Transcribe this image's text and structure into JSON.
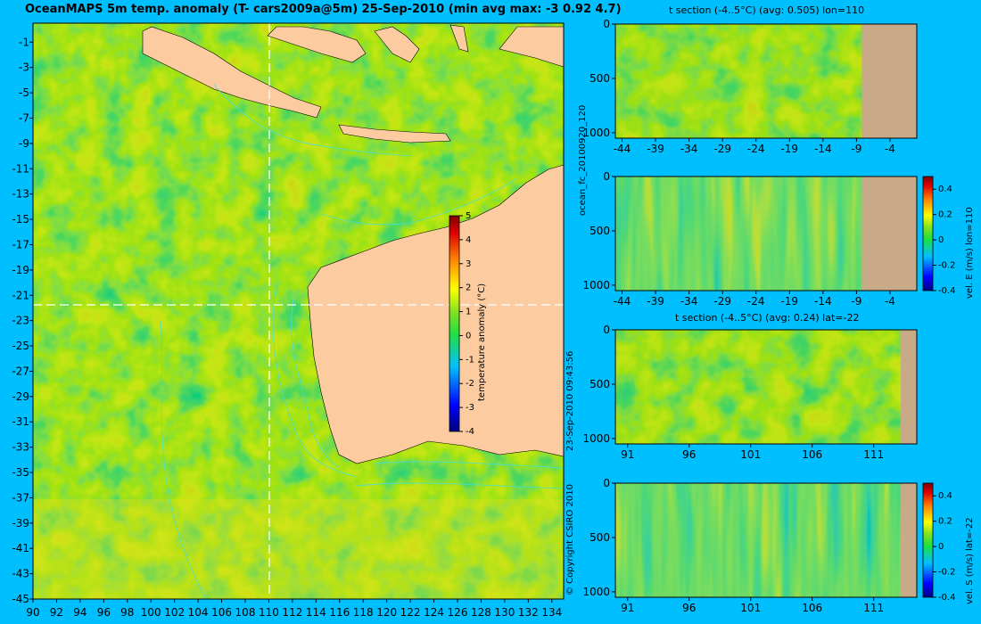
{
  "title": "OceanMAPS 5m temp. anomaly (T- cars2009a@5m) 25-Sep-2010 (min avg max: -3 0.92 4.7)",
  "side_labels": {
    "run_id": "ocean_fc_20100920_120",
    "timestamp": "23-Sep-2010 09:43:56",
    "copyright": "© Copyright CSIRO 2010"
  },
  "colors": {
    "background": "#00bfff",
    "land": "#fccca0",
    "section_land": "#c8aa88",
    "contour": "#40e0e0",
    "crosshair": "#ffffff"
  },
  "chart_data": [
    {
      "id": "map",
      "type": "heatmap",
      "title": "OceanMAPS 5m temp. anomaly (T- cars2009a@5m) 25-Sep-2010 (min avg max: -3 0.92 4.7)",
      "x_ticks": [
        "90",
        "92",
        "94",
        "96",
        "98",
        "100",
        "102",
        "104",
        "106",
        "108",
        "110",
        "112",
        "114",
        "116",
        "118",
        "120",
        "122",
        "124",
        "126",
        "128",
        "130",
        "132",
        "134"
      ],
      "y_ticks": [
        "-1",
        "-3",
        "-5",
        "-7",
        "-9",
        "-11",
        "-13",
        "-15",
        "-17",
        "-19",
        "-21",
        "-23",
        "-25",
        "-27",
        "-29",
        "-31",
        "-33",
        "-35",
        "-37",
        "-39",
        "-41",
        "-43",
        "-45"
      ],
      "xlim": [
        90,
        135
      ],
      "ylim": [
        -45,
        0.5
      ],
      "crosshair": {
        "lon": 110,
        "lat": -22
      },
      "colorbar": {
        "label": "temperature anomaly (°C)",
        "range": [
          -4,
          5
        ],
        "ticks": [
          "5",
          "4",
          "3",
          "2",
          "1",
          "0",
          "-1",
          "-2",
          "-3",
          "-4"
        ]
      },
      "stats": {
        "min": -3,
        "avg": 0.92,
        "max": 4.7
      }
    },
    {
      "id": "t_section_lon",
      "type": "heatmap",
      "title": "t section (-4..5°C) (avg: 0.505) lon=110",
      "x_ticks": [
        "-44",
        "-39",
        "-34",
        "-29",
        "-24",
        "-19",
        "-14",
        "-9",
        "-4"
      ],
      "y_ticks": [
        "0",
        "500",
        "1000"
      ],
      "xlim": [
        -45,
        0
      ],
      "ylim": [
        1050,
        0
      ],
      "avg": 0.505,
      "land_from_x": -8.2
    },
    {
      "id": "vel_e_section",
      "type": "heatmap",
      "title": "",
      "x_ticks": [
        "-44",
        "-39",
        "-34",
        "-29",
        "-24",
        "-19",
        "-14",
        "-9",
        "-4"
      ],
      "y_ticks": [
        "0",
        "500",
        "1000"
      ],
      "xlim": [
        -45,
        0
      ],
      "ylim": [
        1050,
        0
      ],
      "land_from_x": -8.2,
      "colorbar": {
        "label": "vel. E (m/s) lon=110",
        "range": [
          -0.4,
          0.5
        ],
        "ticks": [
          "0.4",
          "0.2",
          "0",
          "-0.2",
          "-0.4"
        ]
      }
    },
    {
      "id": "t_section_lat",
      "type": "heatmap",
      "title": "t section (-4..5°C) (avg: 0.24) lat=-22",
      "x_ticks": [
        "91",
        "96",
        "101",
        "106",
        "111"
      ],
      "y_ticks": [
        "0",
        "500",
        "1000"
      ],
      "xlim": [
        90,
        114.5
      ],
      "ylim": [
        1050,
        0
      ],
      "avg": 0.24,
      "land_from_x": 113.2
    },
    {
      "id": "vel_s_section",
      "type": "heatmap",
      "title": "",
      "x_ticks": [
        "91",
        "96",
        "101",
        "106",
        "111"
      ],
      "y_ticks": [
        "0",
        "500",
        "1000"
      ],
      "xlim": [
        90,
        114.5
      ],
      "ylim": [
        1050,
        0
      ],
      "land_from_x": 113.2,
      "colorbar": {
        "label": "vel. S (m/s) lat=-22",
        "range": [
          -0.4,
          0.5
        ],
        "ticks": [
          "0.4",
          "0.2",
          "0",
          "-0.2",
          "-0.4"
        ]
      }
    }
  ]
}
